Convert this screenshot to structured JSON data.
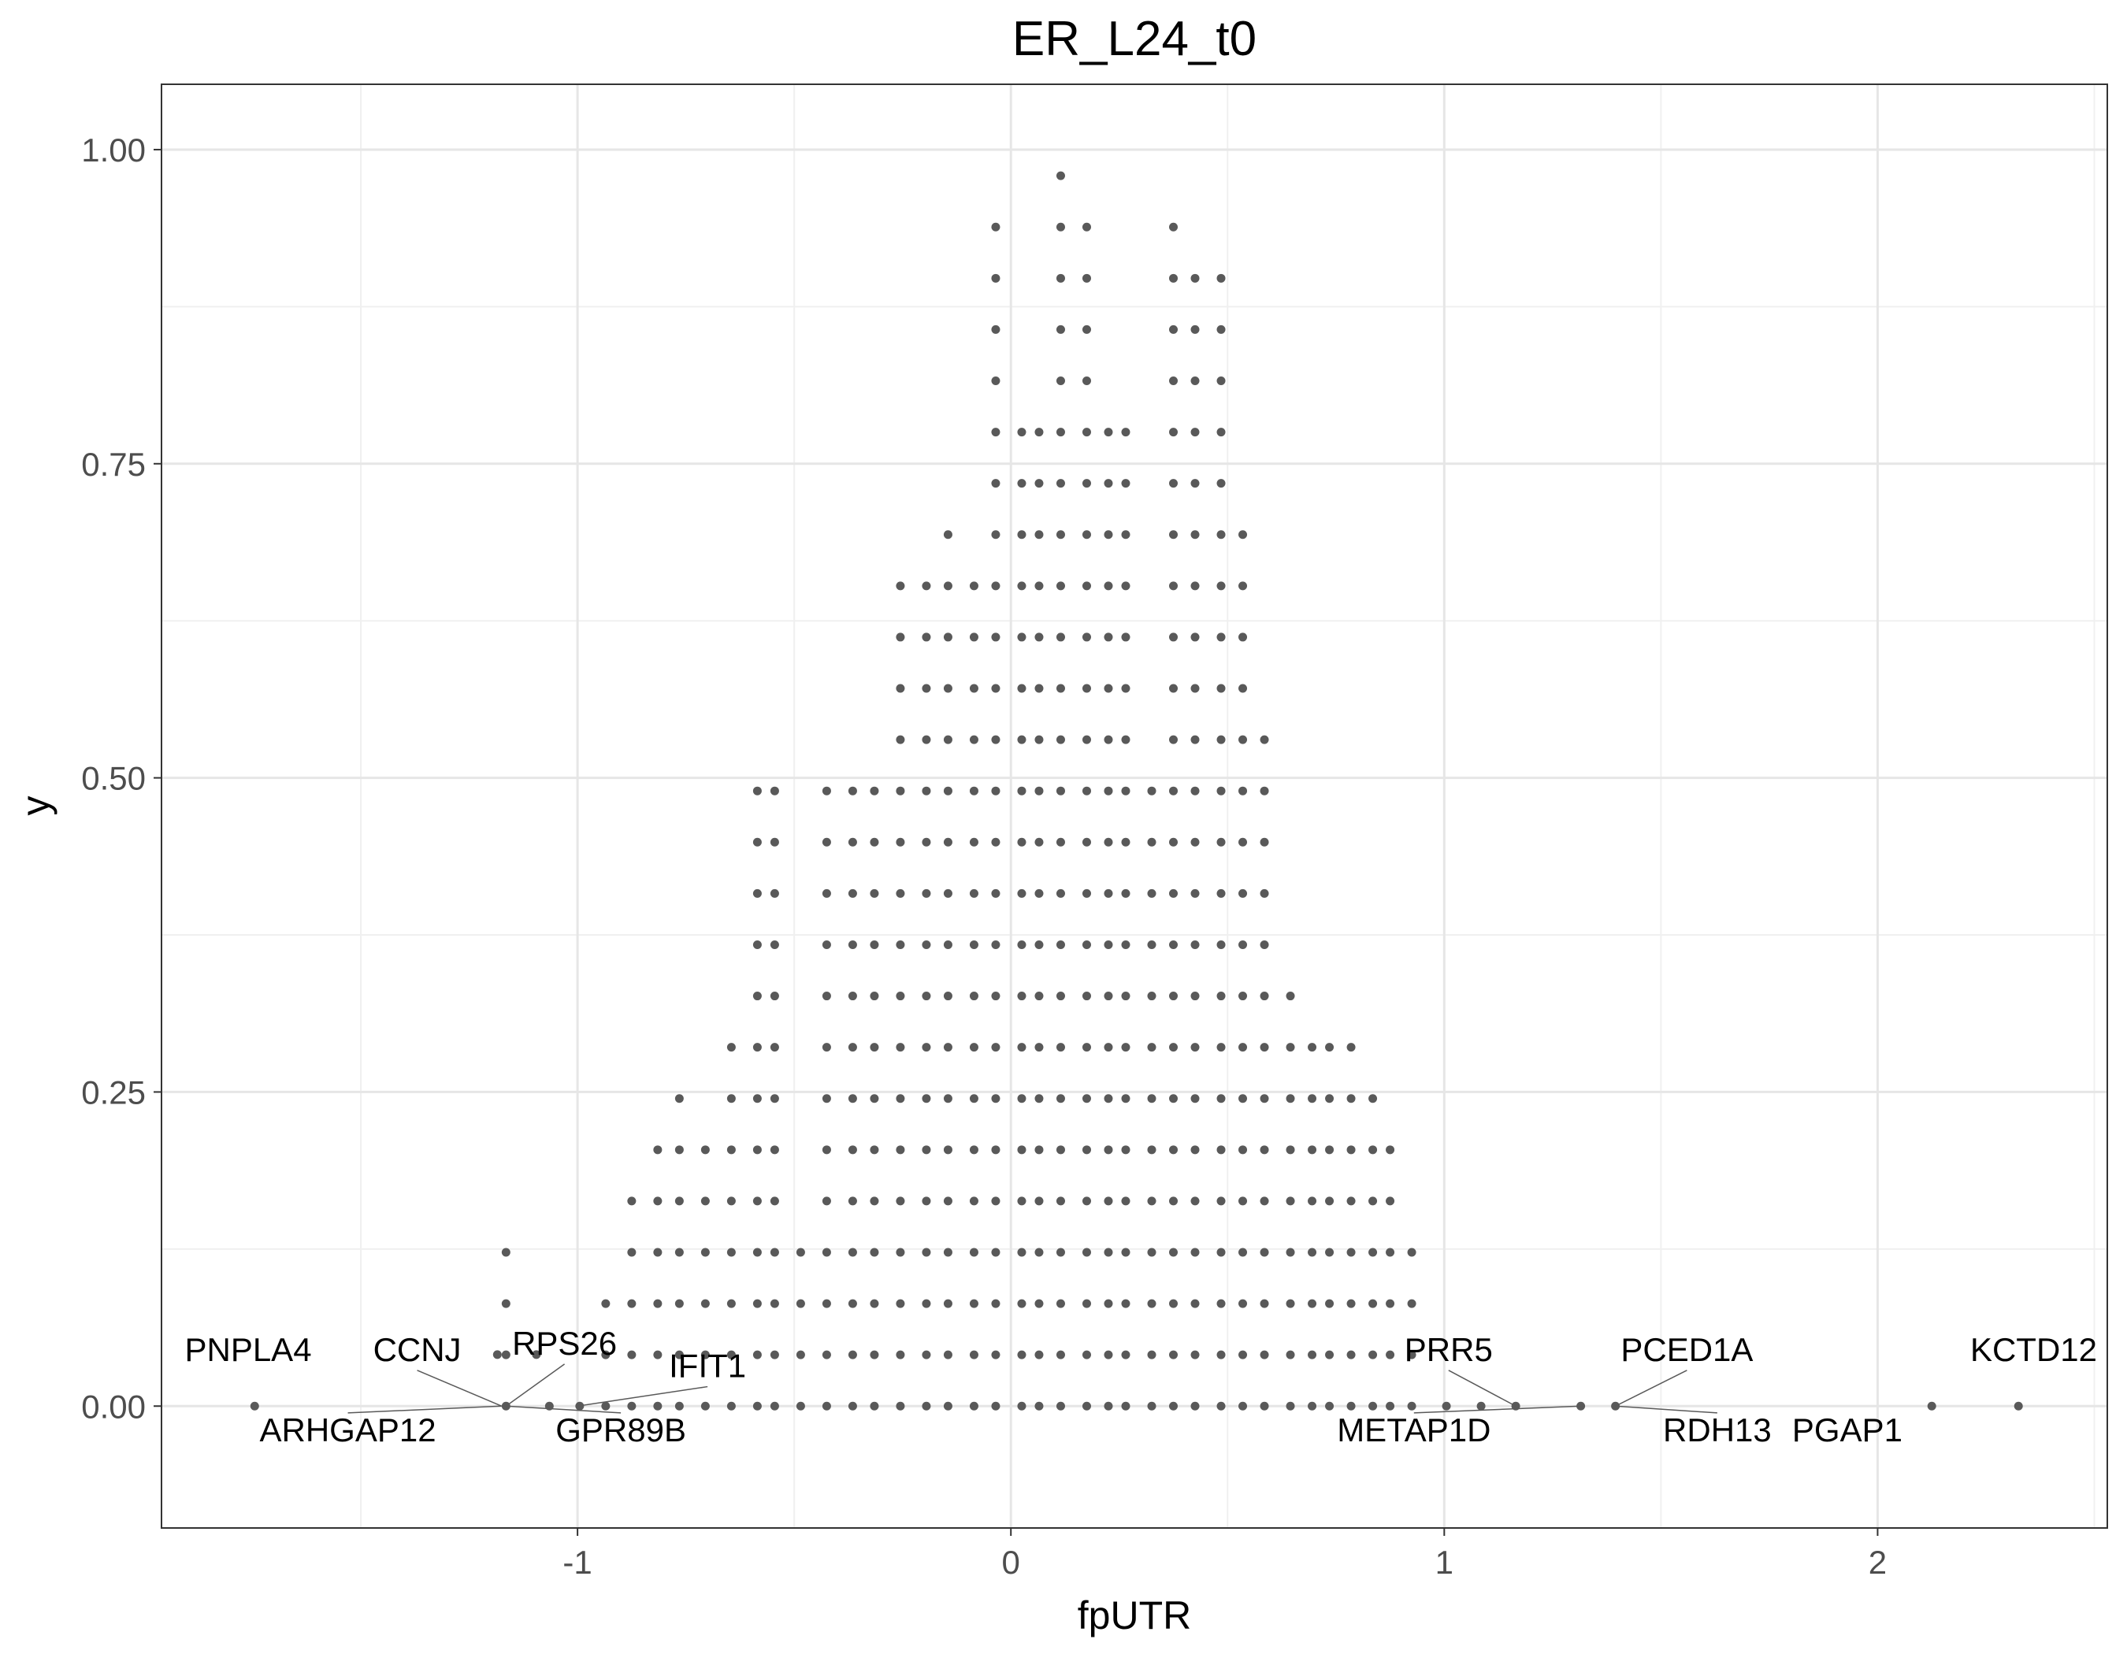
{
  "chart_data": {
    "type": "scatter",
    "title": "ER_L24_t0",
    "xlabel": "fpUTR",
    "ylabel": "y",
    "xlim": [
      -1.96,
      2.53
    ],
    "ylim": [
      -0.097,
      1.052
    ],
    "x_ticks": [
      -1,
      0,
      1,
      2
    ],
    "x_tick_labels": [
      "-1",
      "0",
      "1",
      "2"
    ],
    "y_ticks": [
      0,
      0.25,
      0.5,
      0.75,
      1
    ],
    "y_tick_labels": [
      "0.00",
      "0.25",
      "0.50",
      "0.75",
      "1.00"
    ],
    "grid": true,
    "point_color": "#595959",
    "dot_y_step": 0.0408,
    "columns": [
      [
        -1.745,
        1
      ],
      [
        -1.165,
        4
      ],
      [
        -1.065,
        1
      ],
      [
        -0.995,
        1
      ],
      [
        -0.935,
        3
      ],
      [
        -0.875,
        5
      ],
      [
        -0.815,
        6
      ],
      [
        -0.765,
        7
      ],
      [
        -0.705,
        6
      ],
      [
        -0.645,
        8
      ],
      [
        -0.585,
        13
      ],
      [
        -0.545,
        13
      ],
      [
        -0.485,
        4
      ],
      [
        -0.425,
        13
      ],
      [
        -0.365,
        13
      ],
      [
        -0.315,
        13
      ],
      [
        -0.255,
        17
      ],
      [
        -0.195,
        17
      ],
      [
        -0.145,
        18
      ],
      [
        -0.085,
        17
      ],
      [
        -0.035,
        24
      ],
      [
        0.025,
        20
      ],
      [
        0.065,
        20
      ],
      [
        0.115,
        25
      ],
      [
        0.175,
        24
      ],
      [
        0.225,
        20
      ],
      [
        0.265,
        20
      ],
      [
        0.325,
        13
      ],
      [
        0.375,
        24
      ],
      [
        0.425,
        23
      ],
      [
        0.485,
        23
      ],
      [
        0.535,
        18
      ],
      [
        0.585,
        14
      ],
      [
        0.645,
        9
      ],
      [
        0.695,
        8
      ],
      [
        0.735,
        8
      ],
      [
        0.785,
        8
      ],
      [
        0.835,
        7
      ],
      [
        0.875,
        6
      ],
      [
        0.925,
        4
      ],
      [
        1.165,
        1
      ],
      [
        1.315,
        1
      ],
      [
        1.395,
        1
      ],
      [
        2.125,
        1
      ],
      [
        2.325,
        1
      ]
    ],
    "extra_points": [
      [
        1.005,
        0
      ],
      [
        1.085,
        0
      ],
      [
        -1.185,
        0.041
      ],
      [
        -1.095,
        0.041
      ]
    ],
    "labels": [
      {
        "text": "PNPLA4",
        "x": -1.745,
        "y": 0,
        "lx": -1.76,
        "ly": 0.036,
        "anchor": "middle",
        "line": false
      },
      {
        "text": "CCNJ",
        "x": -1.175,
        "y": 0,
        "lx": -1.37,
        "ly": 0.036,
        "anchor": "middle",
        "line": true
      },
      {
        "text": "RPS26",
        "x": -1.165,
        "y": 0,
        "lx": -1.03,
        "ly": 0.041,
        "anchor": "middle",
        "line": true
      },
      {
        "text": "IFIT1",
        "x": -1.0,
        "y": 0,
        "lx": -0.7,
        "ly": 0.023,
        "anchor": "middle",
        "line": true
      },
      {
        "text": "ARHGAP12",
        "x": -1.175,
        "y": 0,
        "lx": -1.53,
        "ly": -0.028,
        "anchor": "middle",
        "line": true
      },
      {
        "text": "GPR89B",
        "x": -1.165,
        "y": 0,
        "lx": -0.9,
        "ly": -0.028,
        "anchor": "middle",
        "line": true
      },
      {
        "text": "PRR5",
        "x": 1.165,
        "y": 0,
        "lx": 1.01,
        "ly": 0.036,
        "anchor": "middle",
        "line": true
      },
      {
        "text": "PCED1A",
        "x": 1.395,
        "y": 0,
        "lx": 1.56,
        "ly": 0.036,
        "anchor": "middle",
        "line": true
      },
      {
        "text": "METAP1D",
        "x": 1.315,
        "y": 0,
        "lx": 0.93,
        "ly": -0.028,
        "anchor": "middle",
        "line": true
      },
      {
        "text": "RDH13",
        "x": 1.395,
        "y": 0,
        "lx": 1.63,
        "ly": -0.028,
        "anchor": "middle",
        "line": true
      },
      {
        "text": "PGAP1",
        "x": 2.125,
        "y": 0,
        "lx": 1.93,
        "ly": -0.028,
        "anchor": "middle",
        "line": false
      },
      {
        "text": "KCTD12",
        "x": 2.325,
        "y": 0,
        "lx": 2.36,
        "ly": 0.036,
        "anchor": "middle",
        "line": false
      }
    ]
  }
}
